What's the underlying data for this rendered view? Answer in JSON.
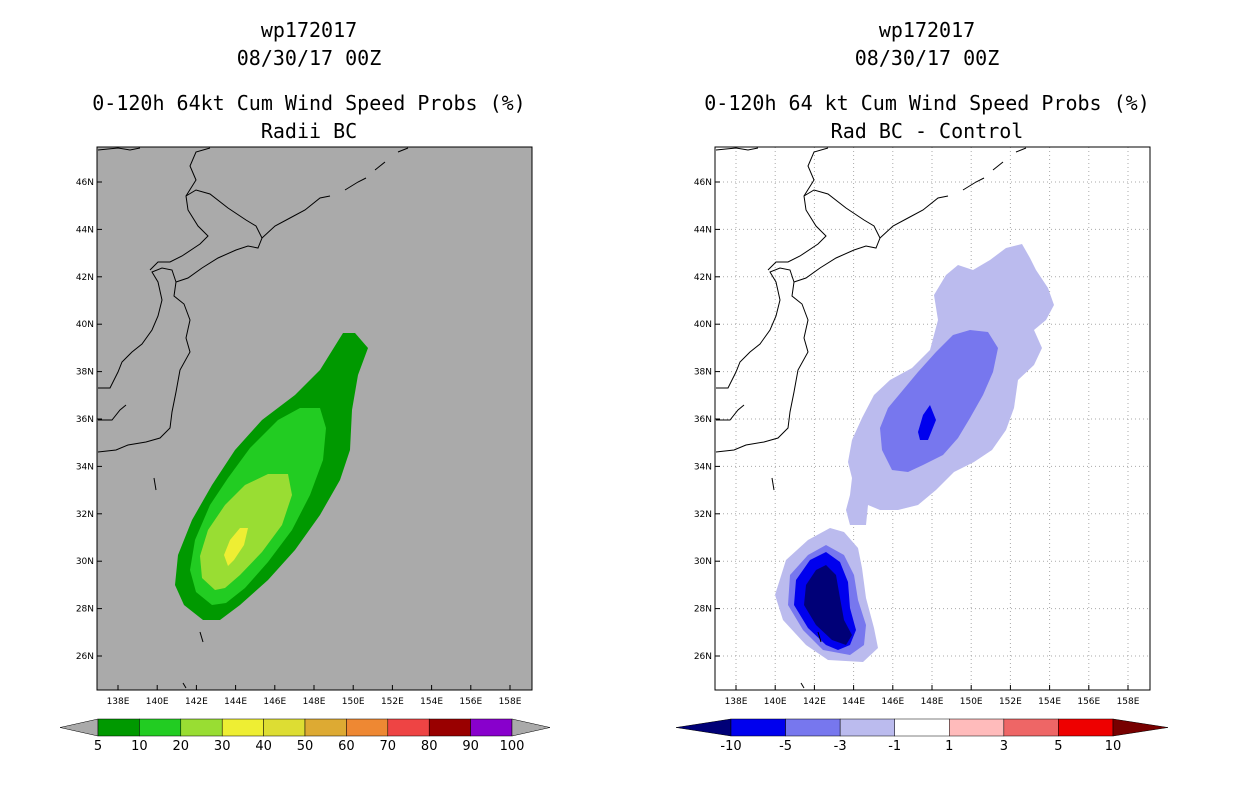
{
  "left": {
    "title_line1": "wp172017",
    "title_line2": "08/30/17 00Z",
    "title_line3": "0-120h 64kt Cum Wind Speed Probs (%)",
    "title_line4": "Radii BC",
    "background_color": "#aaaaaa",
    "colorbar": {
      "colors": [
        "#009900",
        "#22cc22",
        "#99dd33",
        "#eeee33",
        "#dddd33",
        "#ddaa33",
        "#ee8833",
        "#ee4444",
        "#990000",
        "#8800cc"
      ],
      "end_color": "#aaaaaa",
      "labels": [
        "5",
        "10",
        "20",
        "30",
        "40",
        "50",
        "60",
        "70",
        "80",
        "90",
        "100"
      ]
    }
  },
  "right": {
    "title_line1": "wp172017",
    "title_line2": "08/30/17 00Z",
    "title_line3": "0-120h 64 kt Cum Wind Speed Probs (%)",
    "title_line4": "Rad BC - Control",
    "background_color": "#ffffff",
    "colorbar": {
      "colors": [
        "#0000ee",
        "#7777ee",
        "#bbbbee",
        "#ffffff",
        "#ffbbbb",
        "#ee6666",
        "#ee0000"
      ],
      "end_low_color": "#000077",
      "end_high_color": "#770000",
      "labels": [
        "-10",
        "-5",
        "-3",
        "-1",
        "1",
        "3",
        "5",
        "10"
      ]
    }
  },
  "axes": {
    "lon_ticks": [
      "138E",
      "140E",
      "142E",
      "144E",
      "146E",
      "148E",
      "150E",
      "152E",
      "154E",
      "156E",
      "158E"
    ],
    "lat_ticks": [
      "26N",
      "28N",
      "30N",
      "32N",
      "34N",
      "36N",
      "38N",
      "40N",
      "42N",
      "44N",
      "46N"
    ]
  }
}
